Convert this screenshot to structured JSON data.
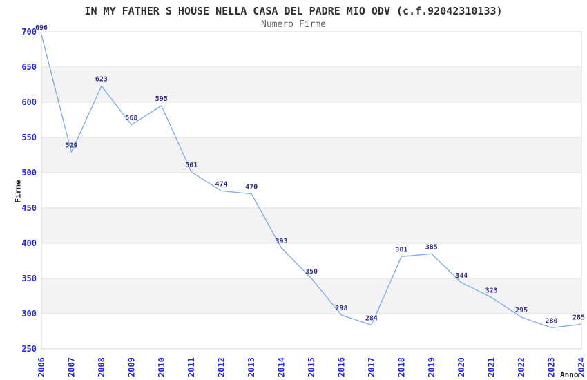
{
  "title": "IN MY FATHER S HOUSE NELLA CASA DEL PADRE MIO ODV (c.f.92042310133)",
  "subtitle": "Numero Firme",
  "chart_data": {
    "type": "line",
    "x": [
      "2006",
      "2007",
      "2008",
      "2009",
      "2010",
      "2011",
      "2012",
      "2013",
      "2014",
      "2015",
      "2016",
      "2017",
      "2018",
      "2019",
      "2020",
      "2021",
      "2022",
      "2023",
      "2024"
    ],
    "series": [
      {
        "name": "Numero Firme",
        "values": [
          696,
          529,
          623,
          568,
          595,
          501,
          474,
          470,
          393,
          350,
          298,
          284,
          381,
          385,
          344,
          323,
          295,
          280,
          285
        ]
      }
    ],
    "title": "IN MY FATHER S HOUSE NELLA CASA DEL PADRE MIO ODV (c.f.92042310133)",
    "subtitle": "Numero Firme",
    "xlabel": "Anno",
    "ylabel": "Firme",
    "ylim": [
      250,
      700
    ],
    "ytick_step": 50,
    "yticks": [
      250,
      300,
      350,
      400,
      450,
      500,
      550,
      600,
      650,
      700
    ],
    "grid": "horizontal",
    "alternating_bands": true,
    "legend": "none",
    "data_labels": "shown above each point",
    "colors": {
      "line": "#78aae6",
      "tick_label": "#2626dd",
      "value_label": "#2e2e85",
      "band_fill": "#f3f3f3",
      "gridline": "#e0e0e0",
      "plot_border": "#d6d6d6",
      "title_text": "#303030",
      "subtitle_text": "#606060",
      "axis_title_text": "#1a1a1a",
      "background": "#ffffff"
    }
  }
}
